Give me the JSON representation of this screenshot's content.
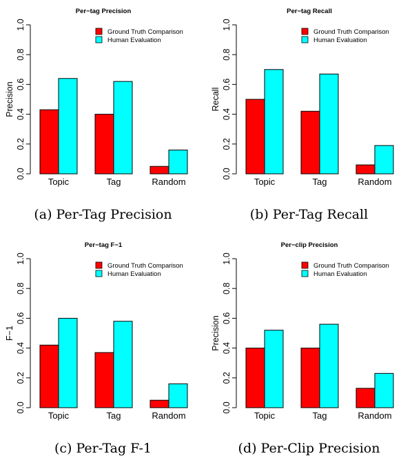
{
  "legend_labels": [
    "Ground Truth Comparison",
    "Human Evaluation"
  ],
  "colors": {
    "ground_truth": "#ff0000",
    "human": "#00ffff"
  },
  "chart_data": [
    {
      "type": "bar",
      "title": "Per−tag Precision",
      "caption": "(a) Per-Tag Precision",
      "ylabel": "Precision",
      "xlabel": "",
      "categories": [
        "Topic",
        "Tag",
        "Random"
      ],
      "yticks": [
        "0.0",
        "0.2",
        "0.4",
        "0.6",
        "0.8",
        "1.0"
      ],
      "ylim": [
        0,
        1
      ],
      "legend": "top-right",
      "grid": false,
      "series": [
        {
          "name": "Ground Truth Comparison",
          "values": [
            0.43,
            0.4,
            0.05
          ]
        },
        {
          "name": "Human Evaluation",
          "values": [
            0.64,
            0.62,
            0.16
          ]
        }
      ]
    },
    {
      "type": "bar",
      "title": "Per−tag Recall",
      "caption": "(b) Per-Tag Recall",
      "ylabel": "Recall",
      "xlabel": "",
      "categories": [
        "Topic",
        "Tag",
        "Random"
      ],
      "yticks": [
        "0.0",
        "0.2",
        "0.4",
        "0.6",
        "0.8",
        "1.0"
      ],
      "ylim": [
        0,
        1
      ],
      "legend": "top-right",
      "grid": false,
      "series": [
        {
          "name": "Ground Truth Comparison",
          "values": [
            0.5,
            0.42,
            0.06
          ]
        },
        {
          "name": "Human Evaluation",
          "values": [
            0.7,
            0.67,
            0.19
          ]
        }
      ]
    },
    {
      "type": "bar",
      "title": "Per−tag F−1",
      "caption": "(c) Per-Tag F-1",
      "ylabel": "F−1",
      "xlabel": "",
      "categories": [
        "Topic",
        "Tag",
        "Random"
      ],
      "yticks": [
        "0.0",
        "0.2",
        "0.4",
        "0.6",
        "0.8",
        "1.0"
      ],
      "ylim": [
        0,
        1
      ],
      "legend": "top-right",
      "grid": false,
      "series": [
        {
          "name": "Ground Truth Comparison",
          "values": [
            0.42,
            0.37,
            0.05
          ]
        },
        {
          "name": "Human Evaluation",
          "values": [
            0.6,
            0.58,
            0.16
          ]
        }
      ]
    },
    {
      "type": "bar",
      "title": "Per−clip Precision",
      "caption": "(d) Per-Clip Precision",
      "ylabel": "Precision",
      "xlabel": "",
      "categories": [
        "Topic",
        "Tag",
        "Random"
      ],
      "yticks": [
        "0.0",
        "0.2",
        "0.4",
        "0.6",
        "0.8",
        "1.0"
      ],
      "ylim": [
        0,
        1
      ],
      "legend": "top-right",
      "grid": false,
      "series": [
        {
          "name": "Ground Truth Comparison",
          "values": [
            0.4,
            0.4,
            0.13
          ]
        },
        {
          "name": "Human Evaluation",
          "values": [
            0.52,
            0.56,
            0.23
          ]
        }
      ]
    }
  ]
}
